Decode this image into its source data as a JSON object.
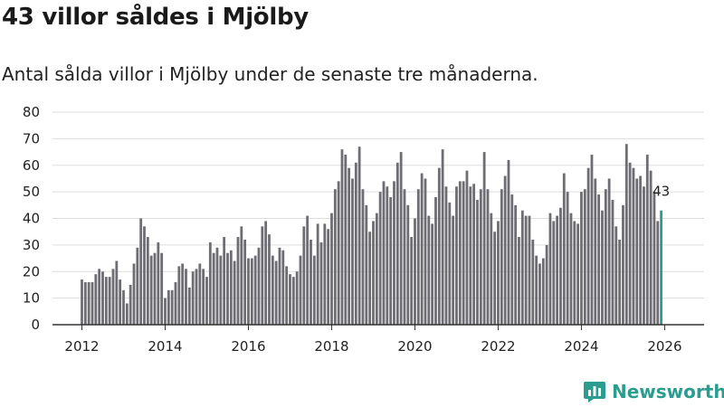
{
  "title": "43 villor såldes i Mjölby",
  "subtitle": "Antal sålda villor i Mjölby under de senaste tre månaderna.",
  "brand": "Newsworthy",
  "colors": {
    "bar": "#6e6d73",
    "highlight": "#2a9d8f",
    "grid": "#dddddd",
    "axis": "#333333",
    "text": "#222222"
  },
  "chart_data": {
    "type": "bar",
    "title": "43 villor såldes i Mjölby",
    "xlabel": "",
    "ylabel": "",
    "ylim": [
      0,
      80
    ],
    "yticks": [
      0,
      10,
      20,
      30,
      40,
      50,
      60,
      70,
      80
    ],
    "xticks": [
      "2012",
      "2014",
      "2016",
      "2018",
      "2020",
      "2022",
      "2024",
      "2026"
    ],
    "start": "2012-01",
    "highlight_label": "43",
    "values": [
      17,
      16,
      16,
      16,
      19,
      21,
      20,
      18,
      18,
      21,
      24,
      17,
      13,
      8,
      15,
      23,
      29,
      40,
      37,
      33,
      26,
      27,
      31,
      27,
      10,
      13,
      13,
      16,
      22,
      23,
      21,
      14,
      20,
      21,
      23,
      21,
      18,
      31,
      27,
      29,
      26,
      33,
      27,
      28,
      24,
      33,
      37,
      32,
      25,
      25,
      26,
      29,
      37,
      39,
      34,
      26,
      24,
      29,
      28,
      22,
      19,
      18,
      20,
      26,
      37,
      41,
      32,
      26,
      38,
      31,
      38,
      36,
      42,
      51,
      54,
      66,
      64,
      59,
      55,
      61,
      67,
      51,
      45,
      35,
      39,
      42,
      50,
      54,
      52,
      48,
      54,
      61,
      65,
      51,
      45,
      33,
      40,
      51,
      57,
      55,
      41,
      38,
      48,
      59,
      66,
      52,
      46,
      41,
      52,
      54,
      54,
      58,
      52,
      53,
      47,
      51,
      65,
      51,
      42,
      35,
      39,
      51,
      56,
      62,
      49,
      45,
      33,
      43,
      41,
      41,
      32,
      26,
      23,
      25,
      30,
      42,
      39,
      41,
      44,
      57,
      50,
      42,
      39,
      38,
      50,
      51,
      59,
      64,
      55,
      49,
      43,
      51,
      55,
      47,
      37,
      32,
      45,
      68,
      61,
      59,
      55,
      56,
      52,
      64,
      58,
      50,
      39,
      43
    ]
  }
}
